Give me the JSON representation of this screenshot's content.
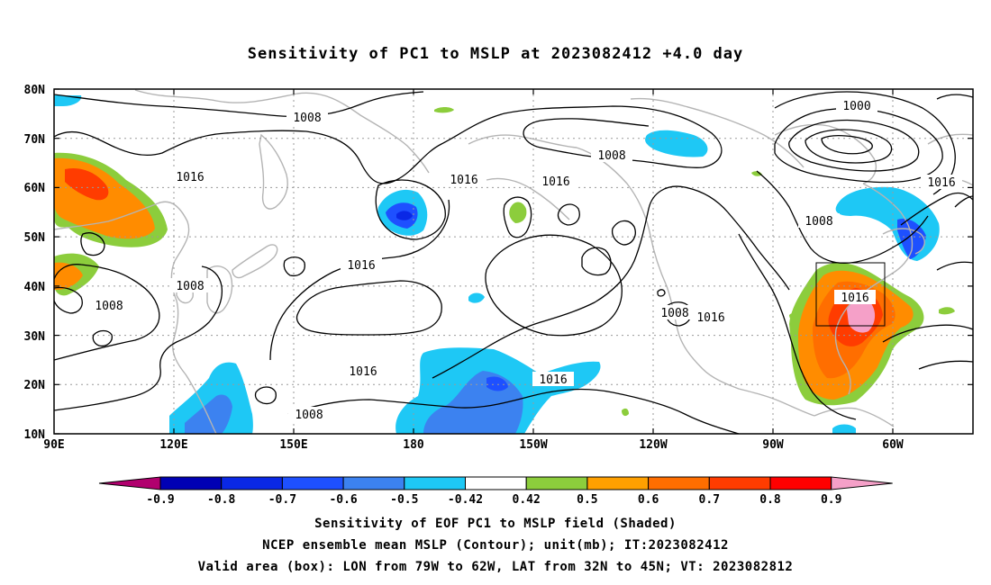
{
  "title": "Sensitivity of PC1 to MSLP at 2023082412 +4.0 day",
  "map": {
    "lat_labels": [
      "80N",
      "70N",
      "60N",
      "50N",
      "40N",
      "30N",
      "20N",
      "10N"
    ],
    "lon_labels": [
      "90E",
      "120E",
      "150E",
      "180",
      "150W",
      "120W",
      "90W",
      "60W"
    ],
    "contour_labels": [
      "1008",
      "1000",
      "1008",
      "1016",
      "1016",
      "1016",
      "1008",
      "1016",
      "1008",
      "1008",
      "1016",
      "1016",
      "1016",
      "1016",
      "1008",
      "1008",
      "1016"
    ]
  },
  "colorbar": {
    "ticks": [
      "-0.9",
      "-0.8",
      "-0.7",
      "-0.6",
      "-0.5",
      "-0.42",
      "0.42",
      "0.5",
      "0.6",
      "0.7",
      "0.8",
      "0.9"
    ],
    "colors": [
      "#b1006e",
      "#0000b4",
      "#0a28e6",
      "#1e50ff",
      "#3c82f0",
      "#1ec8f5",
      "#ffffff",
      "#8ccd3c",
      "#ffa000",
      "#ff6e00",
      "#ff3c00",
      "#ff0000",
      "#f5a0c8"
    ]
  },
  "footer": {
    "line1": "Sensitivity of EOF PC1 to MSLP field (Shaded)",
    "line2": "NCEP ensemble mean MSLP (Contour); unit(mb); IT:2023082412",
    "line3": "Valid area (box): LON from 79W to 62W, LAT from 32N to 45N; VT: 2023082812"
  }
}
